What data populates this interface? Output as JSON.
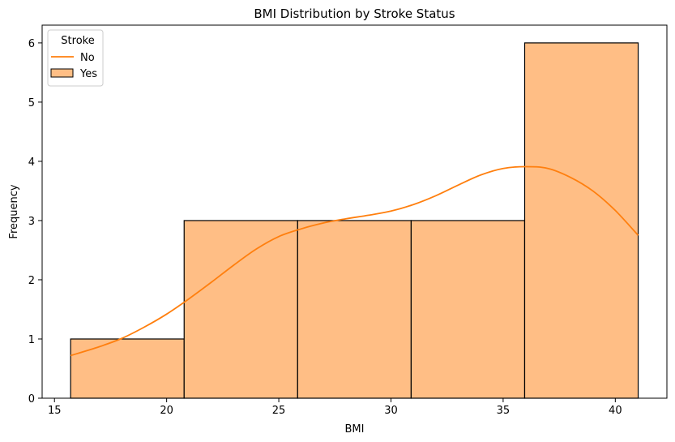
{
  "chart_data": {
    "type": "bar",
    "title": "BMI Distribution by Stroke Status",
    "xlabel": "BMI",
    "ylabel": "Frequency",
    "xlim": [
      14.45,
      42.3
    ],
    "ylim": [
      0,
      6.3
    ],
    "xticks": [
      15,
      20,
      25,
      30,
      35,
      40
    ],
    "yticks": [
      0,
      1,
      2,
      3,
      4,
      5,
      6
    ],
    "grid": false,
    "bins": [
      {
        "x0": 15.72,
        "x1": 20.78,
        "count": 1
      },
      {
        "x0": 20.78,
        "x1": 25.84,
        "count": 3
      },
      {
        "x0": 25.84,
        "x1": 30.9,
        "count": 3
      },
      {
        "x0": 30.9,
        "x1": 35.96,
        "count": 3
      },
      {
        "x0": 35.96,
        "x1": 41.02,
        "count": 6
      }
    ],
    "kde_curve": {
      "x": [
        15.72,
        17.0,
        18.0,
        19.0,
        20.0,
        21.0,
        22.0,
        23.0,
        24.0,
        25.0,
        26.0,
        27.0,
        28.0,
        29.0,
        30.0,
        31.0,
        32.0,
        33.0,
        34.0,
        35.0,
        36.0,
        37.0,
        38.0,
        39.0,
        40.0,
        41.02
      ],
      "y": [
        0.72,
        0.87,
        1.01,
        1.2,
        1.42,
        1.68,
        1.96,
        2.25,
        2.52,
        2.73,
        2.86,
        2.96,
        3.03,
        3.09,
        3.16,
        3.27,
        3.42,
        3.6,
        3.77,
        3.88,
        3.91,
        3.88,
        3.73,
        3.5,
        3.17,
        2.75
      ]
    },
    "legend": {
      "title": "Stroke",
      "position": "top-left",
      "entries": [
        {
          "label": "No",
          "marker": "line"
        },
        {
          "label": "Yes",
          "marker": "patch"
        }
      ]
    },
    "colors": {
      "bar_fill": "#ffbe85",
      "bar_edge": "#000000",
      "curve": "#ff7f0e"
    }
  }
}
